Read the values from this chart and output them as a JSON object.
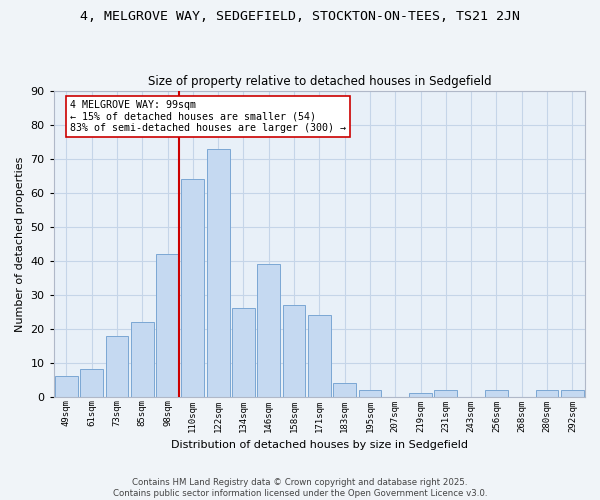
{
  "title": "4, MELGROVE WAY, SEDGEFIELD, STOCKTON-ON-TEES, TS21 2JN",
  "subtitle": "Size of property relative to detached houses in Sedgefield",
  "xlabel": "Distribution of detached houses by size in Sedgefield",
  "ylabel": "Number of detached properties",
  "bar_color": "#c5d9f1",
  "bar_edge_color": "#7ba7d4",
  "categories": [
    "49sqm",
    "61sqm",
    "73sqm",
    "85sqm",
    "98sqm",
    "110sqm",
    "122sqm",
    "134sqm",
    "146sqm",
    "158sqm",
    "171sqm",
    "183sqm",
    "195sqm",
    "207sqm",
    "219sqm",
    "231sqm",
    "243sqm",
    "256sqm",
    "268sqm",
    "280sqm",
    "292sqm"
  ],
  "values": [
    6,
    8,
    18,
    22,
    42,
    64,
    73,
    26,
    39,
    27,
    24,
    4,
    2,
    0,
    1,
    2,
    0,
    2,
    0,
    2,
    2
  ],
  "ylim": [
    0,
    90
  ],
  "yticks": [
    0,
    10,
    20,
    30,
    40,
    50,
    60,
    70,
    80,
    90
  ],
  "vline_x_index": 4,
  "vline_color": "#cc0000",
  "annotation_title": "4 MELGROVE WAY: 99sqm",
  "annotation_line1": "← 15% of detached houses are smaller (54)",
  "annotation_line2": "83% of semi-detached houses are larger (300) →",
  "annotation_box_color": "#ffffff",
  "annotation_box_edge": "#cc0000",
  "grid_color": "#c5d5e8",
  "bg_color": "#e8f0f8",
  "fig_color": "#f0f4f8",
  "footer1": "Contains HM Land Registry data © Crown copyright and database right 2025.",
  "footer2": "Contains public sector information licensed under the Open Government Licence v3.0."
}
